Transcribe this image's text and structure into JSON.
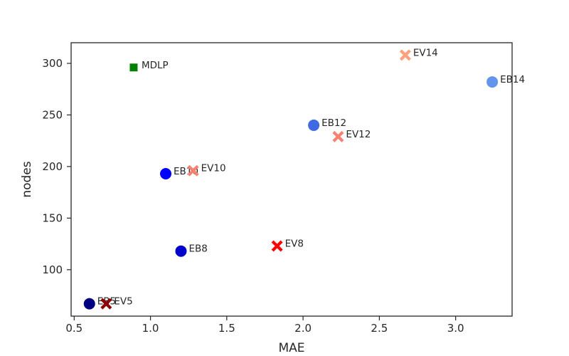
{
  "chart_data": {
    "type": "scatter",
    "xlabel": "MAE",
    "ylabel": "nodes",
    "xlim": [
      0.48,
      3.37
    ],
    "ylim": [
      55,
      320
    ],
    "grid": false,
    "xticks": [
      0.5,
      1.0,
      1.5,
      2.0,
      2.5,
      3.0
    ],
    "xtick_labels": [
      "0.5",
      "1.0",
      "1.5",
      "2.0",
      "2.5",
      "3.0"
    ],
    "yticks": [
      100,
      150,
      200,
      250,
      300
    ],
    "ytick_labels": [
      "100",
      "150",
      "200",
      "250",
      "300"
    ],
    "points": [
      {
        "label": "MDLP",
        "x": 0.89,
        "y": 296,
        "marker": "square",
        "color": "#008000"
      },
      {
        "label": "EV14",
        "x": 2.67,
        "y": 308,
        "marker": "x",
        "color": "#FFA07A"
      },
      {
        "label": "EB14",
        "x": 3.24,
        "y": 282,
        "marker": "circle",
        "color": "#6495ED"
      },
      {
        "label": "EB12",
        "x": 2.07,
        "y": 240,
        "marker": "circle",
        "color": "#4169E1"
      },
      {
        "label": "EV12",
        "x": 2.23,
        "y": 229,
        "marker": "x",
        "color": "#FA8072"
      },
      {
        "label": "EB10",
        "x": 1.1,
        "y": 193,
        "marker": "circle",
        "color": "#0000FF"
      },
      {
        "label": "EV10",
        "x": 1.28,
        "y": 196,
        "marker": "x",
        "color": "#FA8072"
      },
      {
        "label": "EB8",
        "x": 1.2,
        "y": 118,
        "marker": "circle",
        "color": "#0000CD"
      },
      {
        "label": "EV8",
        "x": 1.83,
        "y": 123,
        "marker": "x",
        "color": "#FF0000"
      },
      {
        "label": "EB5",
        "x": 0.6,
        "y": 67,
        "marker": "circle",
        "color": "#000080"
      },
      {
        "label": "EV5",
        "x": 0.71,
        "y": 67,
        "marker": "x",
        "color": "#8B0000"
      }
    ]
  }
}
